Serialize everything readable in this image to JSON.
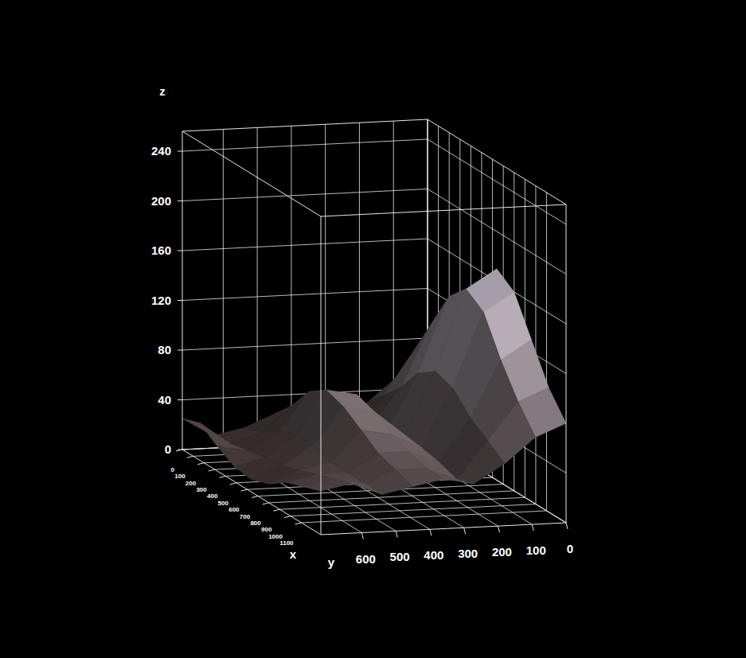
{
  "chart_data": {
    "type": "surface",
    "x_label": "x",
    "y_label": "y",
    "z_label": "z",
    "x": [
      0,
      160,
      320,
      480,
      640,
      800,
      960,
      1120,
      1280
    ],
    "y": [
      0,
      90,
      180,
      270,
      360,
      450,
      540,
      630,
      720
    ],
    "z": [
      [
        60,
        90,
        120,
        150,
        170,
        160,
        130,
        100,
        80
      ],
      [
        50,
        80,
        110,
        140,
        155,
        145,
        115,
        90,
        70
      ],
      [
        30,
        45,
        60,
        80,
        90,
        85,
        70,
        60,
        50
      ],
      [
        15,
        20,
        30,
        35,
        40,
        38,
        35,
        30,
        35
      ],
      [
        20,
        35,
        55,
        65,
        60,
        50,
        45,
        40,
        40
      ],
      [
        25,
        40,
        60,
        70,
        65,
        55,
        45,
        40,
        35
      ],
      [
        15,
        20,
        30,
        35,
        35,
        30,
        30,
        30,
        30
      ],
      [
        10,
        12,
        15,
        18,
        20,
        25,
        30,
        35,
        40
      ],
      [
        25,
        30,
        20,
        12,
        10,
        15,
        25,
        30,
        35
      ]
    ],
    "xlim": [
      0,
      1280
    ],
    "ylim": [
      0,
      720
    ],
    "zlim": [
      0,
      256
    ],
    "xticks": [
      0,
      100,
      200,
      300,
      400,
      500,
      600,
      700,
      800,
      900,
      1000,
      1100
    ],
    "yticks": [
      0,
      100,
      200,
      300,
      400,
      500,
      600
    ],
    "zticks": [
      0,
      40,
      80,
      120,
      160,
      200,
      240
    ],
    "grid": true
  }
}
